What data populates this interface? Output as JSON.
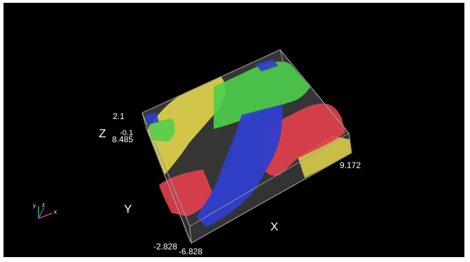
{
  "viewer": {
    "background": "#000000",
    "box_outline_color": "#9a9a9a",
    "volume_fill_color": "#3a3a3a",
    "colors": {
      "red": "#e0404c",
      "green": "#4ccf4a",
      "blue": "#2f3fcc",
      "yellow": "#e3d64a"
    },
    "axes": {
      "x": "X",
      "y": "Y",
      "z": "Z"
    },
    "ticks": {
      "z_top": "2.1",
      "z_mid": "-0.1",
      "z_low": "8.485",
      "x_end": "9.172",
      "y_start": "-2.828",
      "y_end": "-6.828"
    },
    "orientation_widget": {
      "x": "x",
      "y": "y",
      "z": "z",
      "x_color": "#e04040",
      "y_color": "#40c040",
      "z_color": "#4060e0"
    }
  }
}
